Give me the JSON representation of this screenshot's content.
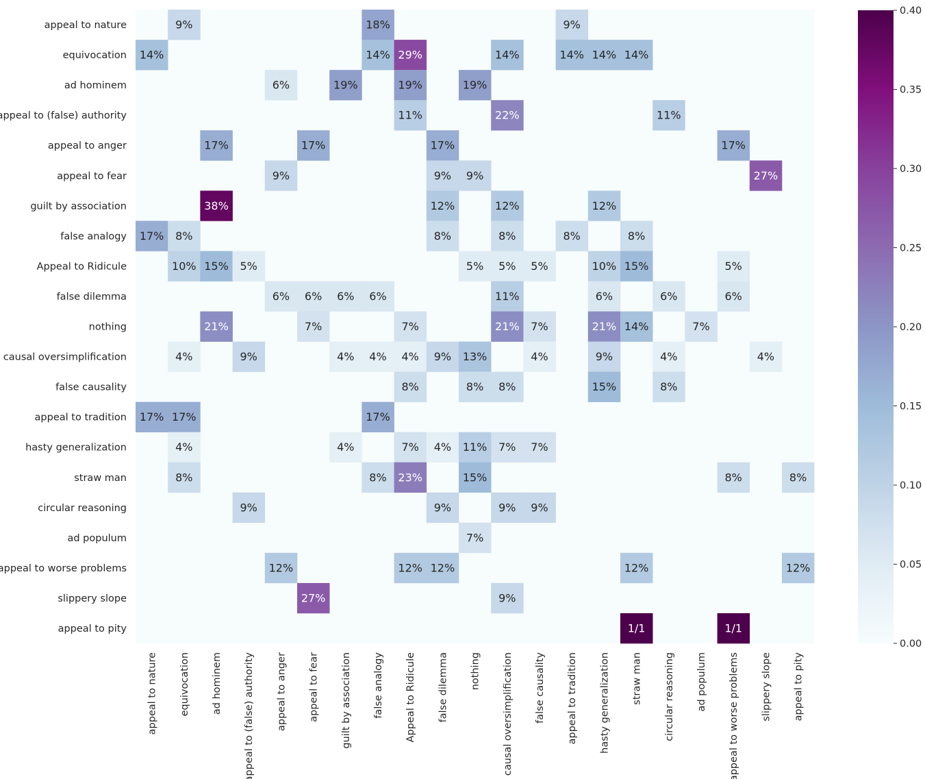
{
  "chart_data": {
    "type": "heatmap",
    "title": "",
    "xlabel": "",
    "ylabel": "",
    "rows": [
      "appeal to nature",
      "equivocation",
      "ad hominem",
      "appeal to (false) authority",
      "appeal to anger",
      "appeal to fear",
      "guilt by association",
      "false analogy",
      "Appeal to Ridicule",
      "false dilemma",
      "nothing",
      "causal oversimplification",
      "false causality",
      "appeal to tradition",
      "hasty generalization",
      "straw man",
      "circular reasoning",
      "ad populum",
      "appeal to worse problems",
      "slippery slope",
      "appeal to pity"
    ],
    "columns": [
      "appeal to nature",
      "equivocation",
      "ad hominem",
      "appeal to (false) authority",
      "appeal to anger",
      "appeal to fear",
      "guilt by association",
      "false analogy",
      "Appeal to Ridicule",
      "false dilemma",
      "nothing",
      "causal oversimplification",
      "false causality",
      "appeal to tradition",
      "hasty generalization",
      "straw man",
      "circular reasoning",
      "ad populum",
      "appeal to worse problems",
      "slippery slope",
      "appeal to pity"
    ],
    "cells": [
      {
        "row": 0,
        "col": 1,
        "value": 0.09,
        "label": "9%"
      },
      {
        "row": 0,
        "col": 7,
        "value": 0.18,
        "label": "18%"
      },
      {
        "row": 0,
        "col": 13,
        "value": 0.09,
        "label": "9%"
      },
      {
        "row": 1,
        "col": 0,
        "value": 0.14,
        "label": "14%"
      },
      {
        "row": 1,
        "col": 7,
        "value": 0.14,
        "label": "14%"
      },
      {
        "row": 1,
        "col": 8,
        "value": 0.29,
        "label": "29%"
      },
      {
        "row": 1,
        "col": 11,
        "value": 0.14,
        "label": "14%"
      },
      {
        "row": 1,
        "col": 13,
        "value": 0.14,
        "label": "14%"
      },
      {
        "row": 1,
        "col": 14,
        "value": 0.14,
        "label": "14%"
      },
      {
        "row": 1,
        "col": 15,
        "value": 0.14,
        "label": "14%"
      },
      {
        "row": 2,
        "col": 4,
        "value": 0.06,
        "label": "6%"
      },
      {
        "row": 2,
        "col": 6,
        "value": 0.19,
        "label": "19%"
      },
      {
        "row": 2,
        "col": 8,
        "value": 0.19,
        "label": "19%"
      },
      {
        "row": 2,
        "col": 10,
        "value": 0.19,
        "label": "19%"
      },
      {
        "row": 3,
        "col": 8,
        "value": 0.11,
        "label": "11%"
      },
      {
        "row": 3,
        "col": 11,
        "value": 0.22,
        "label": "22%"
      },
      {
        "row": 3,
        "col": 16,
        "value": 0.11,
        "label": "11%"
      },
      {
        "row": 4,
        "col": 2,
        "value": 0.17,
        "label": "17%"
      },
      {
        "row": 4,
        "col": 5,
        "value": 0.17,
        "label": "17%"
      },
      {
        "row": 4,
        "col": 9,
        "value": 0.17,
        "label": "17%"
      },
      {
        "row": 4,
        "col": 18,
        "value": 0.17,
        "label": "17%"
      },
      {
        "row": 5,
        "col": 4,
        "value": 0.09,
        "label": "9%"
      },
      {
        "row": 5,
        "col": 9,
        "value": 0.09,
        "label": "9%"
      },
      {
        "row": 5,
        "col": 10,
        "value": 0.09,
        "label": "9%"
      },
      {
        "row": 5,
        "col": 19,
        "value": 0.27,
        "label": "27%"
      },
      {
        "row": 6,
        "col": 2,
        "value": 0.38,
        "label": "38%"
      },
      {
        "row": 6,
        "col": 9,
        "value": 0.12,
        "label": "12%"
      },
      {
        "row": 6,
        "col": 11,
        "value": 0.12,
        "label": "12%"
      },
      {
        "row": 6,
        "col": 14,
        "value": 0.12,
        "label": "12%"
      },
      {
        "row": 7,
        "col": 0,
        "value": 0.17,
        "label": "17%"
      },
      {
        "row": 7,
        "col": 1,
        "value": 0.08,
        "label": "8%"
      },
      {
        "row": 7,
        "col": 9,
        "value": 0.08,
        "label": "8%"
      },
      {
        "row": 7,
        "col": 11,
        "value": 0.08,
        "label": "8%"
      },
      {
        "row": 7,
        "col": 13,
        "value": 0.08,
        "label": "8%"
      },
      {
        "row": 7,
        "col": 15,
        "value": 0.08,
        "label": "8%"
      },
      {
        "row": 8,
        "col": 1,
        "value": 0.1,
        "label": "10%"
      },
      {
        "row": 8,
        "col": 2,
        "value": 0.15,
        "label": "15%"
      },
      {
        "row": 8,
        "col": 3,
        "value": 0.05,
        "label": "5%"
      },
      {
        "row": 8,
        "col": 10,
        "value": 0.05,
        "label": "5%"
      },
      {
        "row": 8,
        "col": 11,
        "value": 0.05,
        "label": "5%"
      },
      {
        "row": 8,
        "col": 12,
        "value": 0.05,
        "label": "5%"
      },
      {
        "row": 8,
        "col": 14,
        "value": 0.1,
        "label": "10%"
      },
      {
        "row": 8,
        "col": 15,
        "value": 0.15,
        "label": "15%"
      },
      {
        "row": 8,
        "col": 18,
        "value": 0.05,
        "label": "5%"
      },
      {
        "row": 9,
        "col": 4,
        "value": 0.06,
        "label": "6%"
      },
      {
        "row": 9,
        "col": 5,
        "value": 0.06,
        "label": "6%"
      },
      {
        "row": 9,
        "col": 6,
        "value": 0.06,
        "label": "6%"
      },
      {
        "row": 9,
        "col": 7,
        "value": 0.06,
        "label": "6%"
      },
      {
        "row": 9,
        "col": 11,
        "value": 0.11,
        "label": "11%"
      },
      {
        "row": 9,
        "col": 14,
        "value": 0.06,
        "label": "6%"
      },
      {
        "row": 9,
        "col": 16,
        "value": 0.06,
        "label": "6%"
      },
      {
        "row": 9,
        "col": 18,
        "value": 0.06,
        "label": "6%"
      },
      {
        "row": 10,
        "col": 2,
        "value": 0.21,
        "label": "21%"
      },
      {
        "row": 10,
        "col": 5,
        "value": 0.07,
        "label": "7%"
      },
      {
        "row": 10,
        "col": 8,
        "value": 0.07,
        "label": "7%"
      },
      {
        "row": 10,
        "col": 11,
        "value": 0.21,
        "label": "21%"
      },
      {
        "row": 10,
        "col": 12,
        "value": 0.07,
        "label": "7%"
      },
      {
        "row": 10,
        "col": 14,
        "value": 0.21,
        "label": "21%"
      },
      {
        "row": 10,
        "col": 15,
        "value": 0.14,
        "label": "14%"
      },
      {
        "row": 10,
        "col": 17,
        "value": 0.07,
        "label": "7%"
      },
      {
        "row": 11,
        "col": 1,
        "value": 0.04,
        "label": "4%"
      },
      {
        "row": 11,
        "col": 3,
        "value": 0.09,
        "label": "9%"
      },
      {
        "row": 11,
        "col": 6,
        "value": 0.04,
        "label": "4%"
      },
      {
        "row": 11,
        "col": 7,
        "value": 0.04,
        "label": "4%"
      },
      {
        "row": 11,
        "col": 8,
        "value": 0.04,
        "label": "4%"
      },
      {
        "row": 11,
        "col": 9,
        "value": 0.09,
        "label": "9%"
      },
      {
        "row": 11,
        "col": 10,
        "value": 0.13,
        "label": "13%"
      },
      {
        "row": 11,
        "col": 12,
        "value": 0.04,
        "label": "4%"
      },
      {
        "row": 11,
        "col": 14,
        "value": 0.09,
        "label": "9%"
      },
      {
        "row": 11,
        "col": 16,
        "value": 0.04,
        "label": "4%"
      },
      {
        "row": 11,
        "col": 19,
        "value": 0.04,
        "label": "4%"
      },
      {
        "row": 12,
        "col": 8,
        "value": 0.08,
        "label": "8%"
      },
      {
        "row": 12,
        "col": 10,
        "value": 0.08,
        "label": "8%"
      },
      {
        "row": 12,
        "col": 11,
        "value": 0.08,
        "label": "8%"
      },
      {
        "row": 12,
        "col": 14,
        "value": 0.15,
        "label": "15%"
      },
      {
        "row": 12,
        "col": 16,
        "value": 0.08,
        "label": "8%"
      },
      {
        "row": 13,
        "col": 0,
        "value": 0.17,
        "label": "17%"
      },
      {
        "row": 13,
        "col": 1,
        "value": 0.17,
        "label": "17%"
      },
      {
        "row": 13,
        "col": 7,
        "value": 0.17,
        "label": "17%"
      },
      {
        "row": 14,
        "col": 1,
        "value": 0.04,
        "label": "4%"
      },
      {
        "row": 14,
        "col": 6,
        "value": 0.04,
        "label": "4%"
      },
      {
        "row": 14,
        "col": 8,
        "value": 0.07,
        "label": "7%"
      },
      {
        "row": 14,
        "col": 9,
        "value": 0.04,
        "label": "4%"
      },
      {
        "row": 14,
        "col": 10,
        "value": 0.11,
        "label": "11%"
      },
      {
        "row": 14,
        "col": 11,
        "value": 0.07,
        "label": "7%"
      },
      {
        "row": 14,
        "col": 12,
        "value": 0.07,
        "label": "7%"
      },
      {
        "row": 15,
        "col": 1,
        "value": 0.08,
        "label": "8%"
      },
      {
        "row": 15,
        "col": 7,
        "value": 0.08,
        "label": "8%"
      },
      {
        "row": 15,
        "col": 8,
        "value": 0.23,
        "label": "23%"
      },
      {
        "row": 15,
        "col": 10,
        "value": 0.15,
        "label": "15%"
      },
      {
        "row": 15,
        "col": 18,
        "value": 0.08,
        "label": "8%"
      },
      {
        "row": 15,
        "col": 20,
        "value": 0.08,
        "label": "8%"
      },
      {
        "row": 16,
        "col": 3,
        "value": 0.09,
        "label": "9%"
      },
      {
        "row": 16,
        "col": 9,
        "value": 0.09,
        "label": "9%"
      },
      {
        "row": 16,
        "col": 11,
        "value": 0.09,
        "label": "9%"
      },
      {
        "row": 16,
        "col": 12,
        "value": 0.09,
        "label": "9%"
      },
      {
        "row": 17,
        "col": 10,
        "value": 0.07,
        "label": "7%"
      },
      {
        "row": 18,
        "col": 4,
        "value": 0.12,
        "label": "12%"
      },
      {
        "row": 18,
        "col": 8,
        "value": 0.12,
        "label": "12%"
      },
      {
        "row": 18,
        "col": 9,
        "value": 0.12,
        "label": "12%"
      },
      {
        "row": 18,
        "col": 15,
        "value": 0.12,
        "label": "12%"
      },
      {
        "row": 18,
        "col": 20,
        "value": 0.12,
        "label": "12%"
      },
      {
        "row": 19,
        "col": 5,
        "value": 0.27,
        "label": "27%"
      },
      {
        "row": 19,
        "col": 11,
        "value": 0.09,
        "label": "9%"
      },
      {
        "row": 20,
        "col": 15,
        "value": 1.0,
        "label": "1/1"
      },
      {
        "row": 20,
        "col": 18,
        "value": 1.0,
        "label": "1/1"
      }
    ],
    "colorbar": {
      "min": 0.0,
      "max": 0.4,
      "ticks": [
        "0.00",
        "0.05",
        "0.10",
        "0.15",
        "0.20",
        "0.25",
        "0.30",
        "0.35",
        "0.40"
      ],
      "colormap": "BuPu"
    },
    "colors": {
      "background": "#f7fcfd",
      "dark_text": "#262626",
      "light_text": "#ffffff"
    }
  }
}
